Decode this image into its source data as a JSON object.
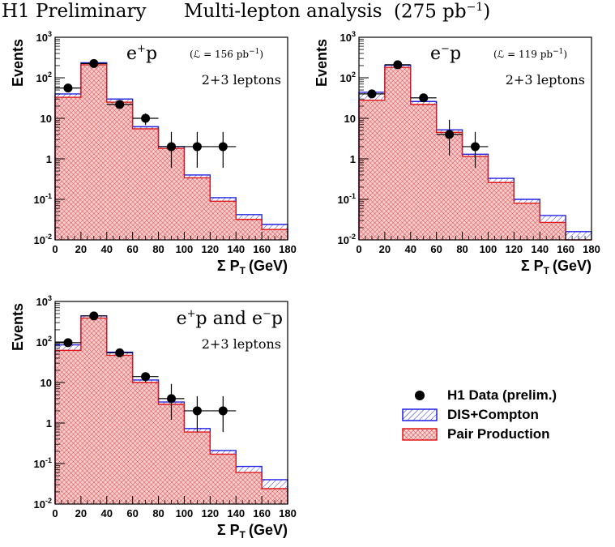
{
  "page": {
    "title_left": "H1 Preliminary",
    "title_mid": "Multi-lepton analysis",
    "title_lumi": "(275 pb",
    "title_lumi_exp": "−1",
    "title_lumi_close": ")"
  },
  "legend": {
    "data_label": "H1 Data (prelim.)",
    "dis_label": "DIS+Compton",
    "pair_label": "Pair Production"
  },
  "colors": {
    "dis": "#2020e0",
    "pair": "#e01818",
    "pair_fill": "#f2cccc",
    "data": "#000000"
  },
  "chart_data": [
    {
      "type": "histogram",
      "name": "e+p",
      "title_sign": "+",
      "lumi": "156",
      "lumi_label": "(ℒ = 156 pb",
      "lumi_exp": "−1",
      "lumi_close": ")",
      "leptons": "2+3 leptons",
      "xlabel": "Σ P",
      "xlabel_sub": "T",
      "xlabel_unit": "(GeV)",
      "ylabel": "Events",
      "xlim": [
        0,
        180
      ],
      "ylim": [
        0.01,
        1000
      ],
      "bin_edges": [
        0,
        20,
        40,
        60,
        80,
        100,
        120,
        140,
        160,
        180
      ],
      "x_ticks": [
        0,
        20,
        40,
        60,
        80,
        100,
        120,
        140,
        160,
        180
      ],
      "x_tick_labels": [
        "0",
        "20",
        "40",
        "60",
        "80",
        "100",
        "120",
        "140",
        "160",
        "180"
      ],
      "y_tick_labels": [
        {
          "base": "10",
          "exp": "-2"
        },
        {
          "base": "10",
          "exp": "-1"
        },
        {
          "base": "1",
          "exp": ""
        },
        {
          "base": "10",
          "exp": ""
        },
        {
          "base": "10",
          "exp": "2"
        },
        {
          "base": "10",
          "exp": "3"
        }
      ],
      "pair_production": [
        33,
        210,
        25,
        5.5,
        1.8,
        0.34,
        0.09,
        0.032,
        0.018
      ],
      "total_sm": [
        40,
        235,
        30,
        6.2,
        2.0,
        0.4,
        0.11,
        0.042,
        0.024
      ],
      "data_x": [
        10,
        30,
        50,
        70,
        90,
        110,
        130
      ],
      "data_y": [
        56,
        225,
        22,
        10,
        2,
        2,
        2
      ]
    },
    {
      "type": "histogram",
      "name": "e-p",
      "title_sign": "−",
      "lumi": "119",
      "lumi_label": "(ℒ = 119 pb",
      "lumi_exp": "−1",
      "lumi_close": ")",
      "leptons": "2+3 leptons",
      "xlabel": "Σ P",
      "xlabel_sub": "T",
      "xlabel_unit": "(GeV)",
      "ylabel": "Events",
      "xlim": [
        0,
        180
      ],
      "ylim": [
        0.01,
        1000
      ],
      "bin_edges": [
        0,
        20,
        40,
        60,
        80,
        100,
        120,
        140,
        160,
        180
      ],
      "x_ticks": [
        0,
        20,
        40,
        60,
        80,
        100,
        120,
        140,
        160,
        180
      ],
      "x_tick_labels": [
        "0",
        "20",
        "40",
        "60",
        "80",
        "100",
        "120",
        "140",
        "160",
        "180"
      ],
      "y_tick_labels": [
        {
          "base": "10",
          "exp": "-2"
        },
        {
          "base": "10",
          "exp": "-1"
        },
        {
          "base": "1",
          "exp": ""
        },
        {
          "base": "10",
          "exp": ""
        },
        {
          "base": "10",
          "exp": "2"
        },
        {
          "base": "10",
          "exp": "3"
        }
      ],
      "pair_production": [
        28,
        180,
        22,
        4.5,
        1.15,
        0.26,
        0.08,
        0.027,
        0.01
      ],
      "total_sm": [
        44,
        205,
        26,
        5.2,
        1.3,
        0.33,
        0.1,
        0.04,
        0.016
      ],
      "data_x": [
        10,
        30,
        50,
        70,
        90
      ],
      "data_y": [
        40,
        210,
        32,
        4,
        2
      ]
    },
    {
      "type": "histogram",
      "name": "e+p and e-p",
      "combined": true,
      "title_a": "e",
      "title_a_sign": "+",
      "title_mid": "p and e",
      "title_b_sign": "−",
      "title_end": "p",
      "leptons": "2+3 leptons",
      "xlabel": "Σ P",
      "xlabel_sub": "T",
      "xlabel_unit": "(GeV)",
      "ylabel": "Events",
      "xlim": [
        0,
        180
      ],
      "ylim": [
        0.01,
        1000
      ],
      "bin_edges": [
        0,
        20,
        40,
        60,
        80,
        100,
        120,
        140,
        160,
        180
      ],
      "x_ticks": [
        0,
        20,
        40,
        60,
        80,
        100,
        120,
        140,
        160,
        180
      ],
      "x_tick_labels": [
        "0",
        "20",
        "40",
        "60",
        "80",
        "100",
        "120",
        "140",
        "160",
        "180"
      ],
      "y_tick_labels": [
        {
          "base": "10",
          "exp": "-2"
        },
        {
          "base": "10",
          "exp": "-1"
        },
        {
          "base": "1",
          "exp": ""
        },
        {
          "base": "10",
          "exp": ""
        },
        {
          "base": "10",
          "exp": "2"
        },
        {
          "base": "10",
          "exp": "3"
        }
      ],
      "pair_production": [
        62,
        390,
        47,
        10,
        2.9,
        0.6,
        0.17,
        0.06,
        0.024
      ],
      "total_sm": [
        85,
        440,
        56,
        11.5,
        3.3,
        0.73,
        0.21,
        0.085,
        0.04
      ],
      "data_x": [
        10,
        30,
        50,
        70,
        90,
        110,
        130
      ],
      "data_y": [
        96,
        440,
        54,
        14,
        4,
        2,
        2
      ]
    }
  ]
}
